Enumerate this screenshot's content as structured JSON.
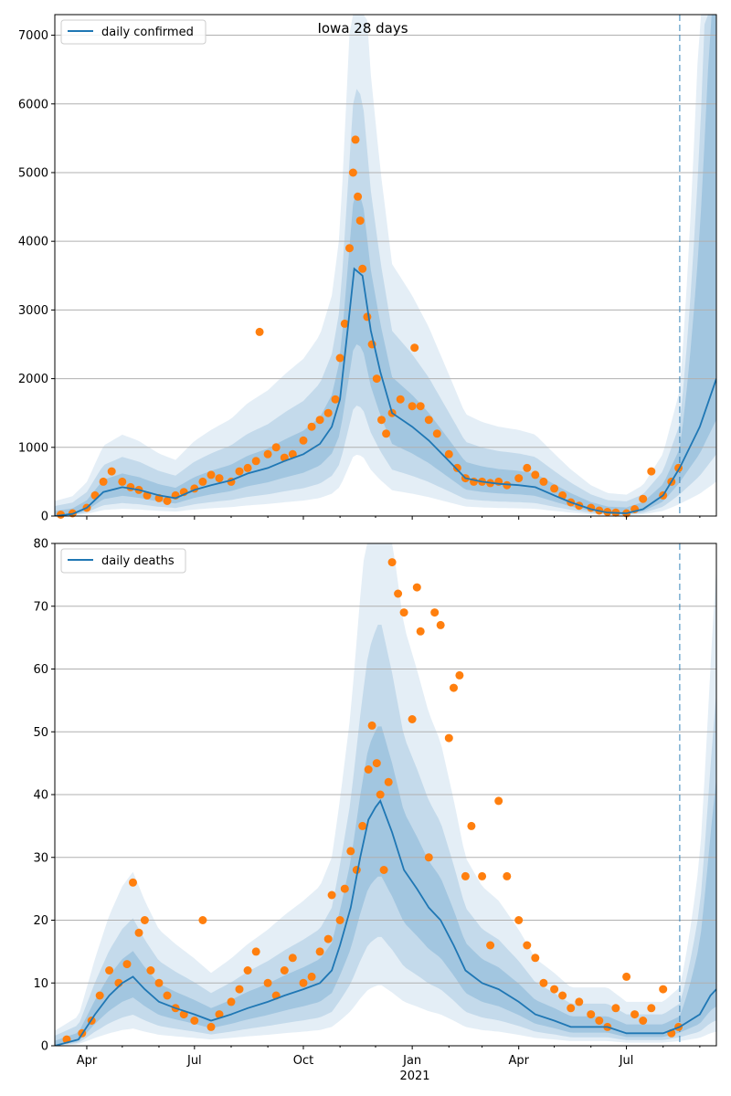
{
  "figure": {
    "title": "Iowa 28 days",
    "year_label": "2021"
  },
  "colors": {
    "line": "#1f77b4",
    "points": "#ff7f0e",
    "band": "#1f77b4",
    "grid": "#b0b0b0",
    "vline": "#1f77b4"
  },
  "chart_data": [
    {
      "type": "line",
      "title": "Iowa 28 days",
      "legend": "daily confirmed",
      "legend_position": "top-left",
      "xlabel": "",
      "ylabel": "",
      "ylim": [
        0,
        7300
      ],
      "yticks": [
        0,
        1000,
        2000,
        3000,
        4000,
        5000,
        6000,
        7000
      ],
      "grid": true,
      "forecast_start": "2021-08-15",
      "model_line": {
        "x": [
          "2020-03-05",
          "2020-03-20",
          "2020-04-01",
          "2020-04-15",
          "2020-05-01",
          "2020-05-15",
          "2020-06-01",
          "2020-06-15",
          "2020-07-01",
          "2020-07-15",
          "2020-08-01",
          "2020-08-15",
          "2020-09-01",
          "2020-09-15",
          "2020-10-01",
          "2020-10-15",
          "2020-10-25",
          "2020-11-01",
          "2020-11-08",
          "2020-11-13",
          "2020-11-20",
          "2020-11-27",
          "2020-12-05",
          "2020-12-15",
          "2021-01-01",
          "2021-01-15",
          "2021-02-01",
          "2021-02-15",
          "2021-03-01",
          "2021-03-15",
          "2021-04-01",
          "2021-04-15",
          "2021-05-01",
          "2021-05-15",
          "2021-06-01",
          "2021-06-15",
          "2021-07-01",
          "2021-07-15",
          "2021-08-01",
          "2021-08-15",
          "2021-09-01",
          "2021-09-15"
        ],
        "y": [
          0,
          30,
          120,
          350,
          420,
          380,
          300,
          260,
          380,
          450,
          520,
          620,
          700,
          800,
          900,
          1050,
          1300,
          1700,
          2800,
          3600,
          3500,
          2700,
          2100,
          1500,
          1300,
          1100,
          800,
          550,
          500,
          470,
          450,
          420,
          300,
          200,
          100,
          50,
          40,
          100,
          300,
          700,
          1300,
          2000
        ]
      },
      "observed": {
        "x": [
          "2020-03-10",
          "2020-03-20",
          "2020-04-01",
          "2020-04-08",
          "2020-04-15",
          "2020-04-22",
          "2020-05-01",
          "2020-05-08",
          "2020-05-15",
          "2020-05-22",
          "2020-06-01",
          "2020-06-08",
          "2020-06-15",
          "2020-06-22",
          "2020-07-01",
          "2020-07-08",
          "2020-07-15",
          "2020-07-22",
          "2020-08-01",
          "2020-08-08",
          "2020-08-15",
          "2020-08-22",
          "2020-08-25",
          "2020-09-01",
          "2020-09-08",
          "2020-09-15",
          "2020-09-22",
          "2020-10-01",
          "2020-10-08",
          "2020-10-15",
          "2020-10-22",
          "2020-10-28",
          "2020-11-01",
          "2020-11-05",
          "2020-11-09",
          "2020-11-12",
          "2020-11-14",
          "2020-11-16",
          "2020-11-18",
          "2020-11-20",
          "2020-11-24",
          "2020-11-28",
          "2020-12-02",
          "2020-12-06",
          "2020-12-10",
          "2020-12-15",
          "2020-12-22",
          "2021-01-01",
          "2021-01-03",
          "2021-01-08",
          "2021-01-15",
          "2021-01-22",
          "2021-02-01",
          "2021-02-08",
          "2021-02-15",
          "2021-02-22",
          "2021-03-01",
          "2021-03-08",
          "2021-03-15",
          "2021-03-22",
          "2021-04-01",
          "2021-04-08",
          "2021-04-15",
          "2021-04-22",
          "2021-05-01",
          "2021-05-08",
          "2021-05-15",
          "2021-05-22",
          "2021-06-01",
          "2021-06-08",
          "2021-06-15",
          "2021-06-22",
          "2021-07-01",
          "2021-07-08",
          "2021-07-15",
          "2021-07-22",
          "2021-08-01",
          "2021-08-08",
          "2021-08-14"
        ],
        "y": [
          20,
          40,
          120,
          300,
          500,
          650,
          500,
          420,
          380,
          300,
          260,
          220,
          300,
          350,
          400,
          500,
          600,
          550,
          500,
          650,
          700,
          800,
          2680,
          900,
          1000,
          850,
          900,
          1100,
          1300,
          1400,
          1500,
          1700,
          2300,
          2800,
          3900,
          5000,
          5480,
          4650,
          4300,
          3600,
          2900,
          2500,
          2000,
          1400,
          1200,
          1500,
          1700,
          1600,
          2450,
          1600,
          1400,
          1200,
          900,
          700,
          550,
          500,
          500,
          480,
          500,
          450,
          550,
          700,
          600,
          500,
          400,
          300,
          200,
          150,
          120,
          80,
          60,
          50,
          40,
          100,
          250,
          650,
          300,
          500,
          700
        ]
      }
    },
    {
      "type": "line",
      "legend": "daily deaths",
      "legend_position": "top-left",
      "xlabel": "",
      "ylabel": "",
      "ylim": [
        0,
        80
      ],
      "yticks": [
        0,
        10,
        20,
        30,
        40,
        50,
        60,
        70,
        80
      ],
      "xticks": [
        "Apr",
        "Jul",
        "Oct",
        "Jan",
        "Apr",
        "Jul"
      ],
      "grid": true,
      "forecast_start": "2021-08-15",
      "model_line": {
        "x": [
          "2020-03-05",
          "2020-03-25",
          "2020-04-08",
          "2020-04-20",
          "2020-05-01",
          "2020-05-10",
          "2020-05-20",
          "2020-06-01",
          "2020-06-15",
          "2020-07-01",
          "2020-07-15",
          "2020-08-01",
          "2020-08-15",
          "2020-09-01",
          "2020-09-15",
          "2020-10-01",
          "2020-10-15",
          "2020-10-25",
          "2020-11-01",
          "2020-11-10",
          "2020-11-18",
          "2020-11-25",
          "2020-12-01",
          "2020-12-05",
          "2020-12-15",
          "2020-12-25",
          "2021-01-05",
          "2021-01-15",
          "2021-01-25",
          "2021-02-05",
          "2021-02-15",
          "2021-03-01",
          "2021-03-15",
          "2021-04-01",
          "2021-04-15",
          "2021-05-01",
          "2021-05-15",
          "2021-06-01",
          "2021-06-15",
          "2021-07-01",
          "2021-07-15",
          "2021-08-01",
          "2021-08-15",
          "2021-09-01",
          "2021-09-10",
          "2021-09-15"
        ],
        "y": [
          0,
          1,
          5,
          8,
          10,
          11,
          9,
          7,
          6,
          5,
          4,
          5,
          6,
          7,
          8,
          9,
          10,
          12,
          16,
          22,
          30,
          36,
          38,
          39,
          34,
          28,
          25,
          22,
          20,
          16,
          12,
          10,
          9,
          7,
          5,
          4,
          3,
          3,
          3,
          2,
          2,
          2,
          3,
          5,
          8,
          9
        ]
      },
      "observed": {
        "x": [
          "2020-03-15",
          "2020-03-28",
          "2020-04-05",
          "2020-04-12",
          "2020-04-20",
          "2020-04-28",
          "2020-05-05",
          "2020-05-10",
          "2020-05-15",
          "2020-05-20",
          "2020-05-25",
          "2020-06-01",
          "2020-06-08",
          "2020-06-15",
          "2020-06-22",
          "2020-07-01",
          "2020-07-08",
          "2020-07-15",
          "2020-07-22",
          "2020-08-01",
          "2020-08-08",
          "2020-08-15",
          "2020-08-22",
          "2020-09-01",
          "2020-09-08",
          "2020-09-15",
          "2020-09-22",
          "2020-10-01",
          "2020-10-08",
          "2020-10-15",
          "2020-10-22",
          "2020-10-25",
          "2020-11-01",
          "2020-11-05",
          "2020-11-10",
          "2020-11-15",
          "2020-11-20",
          "2020-11-25",
          "2020-11-28",
          "2020-12-02",
          "2020-12-05",
          "2020-12-08",
          "2020-12-12",
          "2020-12-15",
          "2020-12-20",
          "2020-12-25",
          "2021-01-01",
          "2021-01-05",
          "2021-01-08",
          "2021-01-15",
          "2021-01-20",
          "2021-01-25",
          "2021-02-01",
          "2021-02-05",
          "2021-02-10",
          "2021-02-15",
          "2021-02-20",
          "2021-03-01",
          "2021-03-08",
          "2021-03-15",
          "2021-03-22",
          "2021-04-01",
          "2021-04-08",
          "2021-04-15",
          "2021-04-22",
          "2021-05-01",
          "2021-05-08",
          "2021-05-15",
          "2021-05-22",
          "2021-06-01",
          "2021-06-08",
          "2021-06-15",
          "2021-06-22",
          "2021-07-01",
          "2021-07-08",
          "2021-07-15",
          "2021-07-22",
          "2021-08-01",
          "2021-08-08",
          "2021-08-14"
        ],
        "y": [
          1,
          2,
          4,
          8,
          12,
          10,
          13,
          26,
          18,
          20,
          12,
          10,
          8,
          6,
          5,
          4,
          20,
          3,
          5,
          7,
          9,
          12,
          15,
          10,
          8,
          12,
          14,
          10,
          11,
          15,
          17,
          24,
          20,
          25,
          31,
          28,
          35,
          44,
          51,
          45,
          40,
          28,
          42,
          77,
          72,
          69,
          52,
          73,
          66,
          30,
          69,
          67,
          49,
          57,
          59,
          27,
          35,
          27,
          16,
          39,
          27,
          20,
          16,
          14,
          10,
          9,
          8,
          6,
          7,
          5,
          4,
          3,
          6,
          11,
          5,
          4,
          6,
          9,
          2,
          3
        ]
      }
    }
  ]
}
